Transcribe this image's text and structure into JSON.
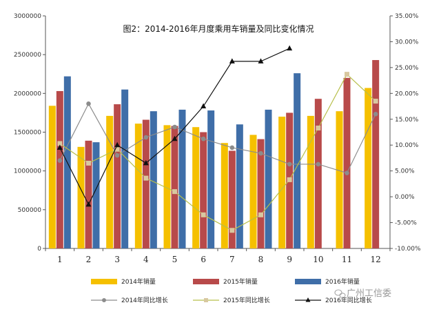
{
  "chart_data": {
    "type": "bar",
    "title": "图2：2014-2016年月度乘用车销量及同比变化情况",
    "categories": [
      "1",
      "2",
      "3",
      "4",
      "5",
      "6",
      "7",
      "8",
      "9",
      "10",
      "11",
      "12"
    ],
    "ylim_left": [
      0,
      3000000
    ],
    "ylim_right": [
      -10,
      35
    ],
    "left_ticks": [
      "0",
      "500000",
      "1000000",
      "1500000",
      "2000000",
      "2500000",
      "3000000"
    ],
    "right_ticks": [
      "-10.00%",
      "-5.00%",
      "0.00%",
      "5.00%",
      "10.00%",
      "15.00%",
      "20.00%",
      "25.00%",
      "30.00%",
      "35.00%"
    ],
    "grid": false,
    "legend_position": "bottom",
    "series": [
      {
        "name": "2014年销量",
        "kind": "bar",
        "axis": "left",
        "color": "#f5c000",
        "values": [
          1840000,
          1310000,
          1710000,
          1610000,
          1590000,
          1565000,
          1360000,
          1465000,
          1700000,
          1710000,
          1770000,
          2070000
        ]
      },
      {
        "name": "2015年销量",
        "kind": "bar",
        "axis": "left",
        "color": "#b84a4a",
        "values": [
          2030000,
          1390000,
          1860000,
          1660000,
          1580000,
          1500000,
          1260000,
          1410000,
          1750000,
          1930000,
          2200000,
          2430000
        ]
      },
      {
        "name": "2016年销量",
        "kind": "bar",
        "axis": "left",
        "color": "#3f6ea8",
        "values": [
          2220000,
          1370000,
          2050000,
          1770000,
          1790000,
          1780000,
          1600000,
          1790000,
          2260000,
          null,
          null,
          null
        ]
      },
      {
        "name": "2014年同比增长",
        "kind": "line",
        "axis": "right",
        "color": "#8c8c8c",
        "marker": "circle",
        "values": [
          7,
          18,
          8,
          11.5,
          13.5,
          11.2,
          9.5,
          8.4,
          6.3,
          6.3,
          4.6,
          16
        ]
      },
      {
        "name": "2015年同比增长",
        "kind": "line",
        "axis": "right",
        "color": "#b7bf4a",
        "marker": "square",
        "marker_color": "#d8c8a0",
        "values": [
          10.3,
          6.5,
          9.2,
          3.6,
          1,
          -3.5,
          -6.5,
          -3.5,
          3.3,
          13.3,
          23.7,
          18.5
        ]
      },
      {
        "name": "2016年同比增长",
        "kind": "line",
        "axis": "right",
        "color": "#111111",
        "marker": "triangle",
        "values": [
          9.5,
          -1.5,
          10,
          6.5,
          11.2,
          17.5,
          26.2,
          26.2,
          28.7,
          null,
          null,
          null
        ]
      }
    ]
  },
  "watermark": "广州工信委",
  "watermark_icon": "wechat-icon"
}
